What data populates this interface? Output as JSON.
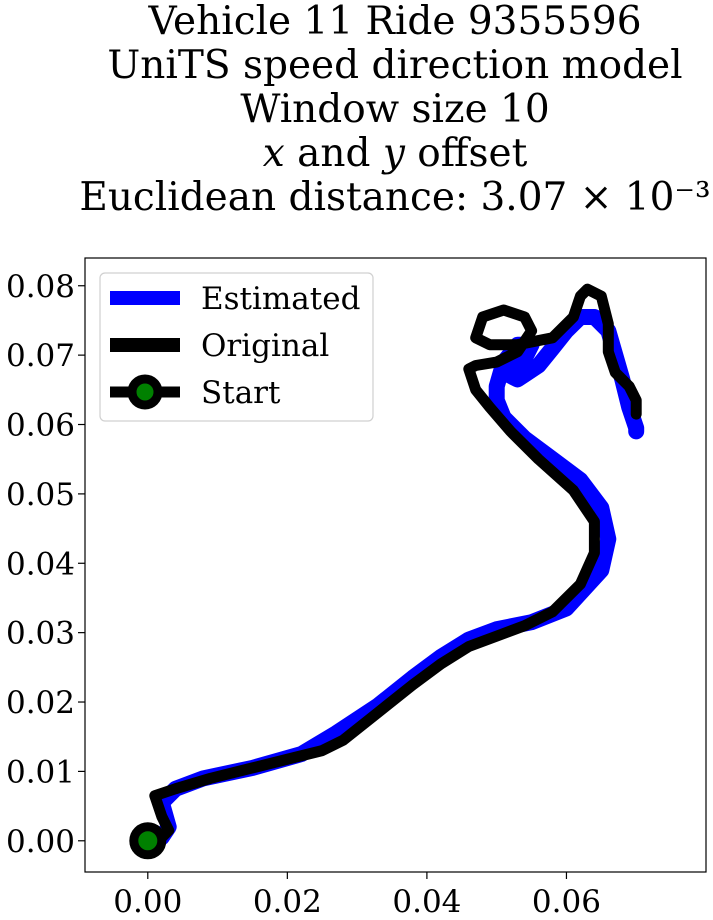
{
  "title_lines": [
    "Vehicle 11 Ride 9355596",
    "UniTS speed direction model",
    "Window size 10",
    "x and y offset",
    "Euclidean distance: 3.07 × 10⁻³"
  ],
  "chart_data": {
    "type": "line",
    "title": "Vehicle 11 Ride 9355596 / UniTS speed direction model / Window size 10 / x and y offset / Euclidean distance: 3.07 × 10⁻³",
    "xlabel": "",
    "ylabel": "",
    "xlim": [
      -0.009,
      0.08
    ],
    "ylim": [
      -0.0045,
      0.084
    ],
    "xticks": [
      0.0,
      0.02,
      0.04,
      0.06
    ],
    "xtick_labels": [
      "0.00",
      "0.02",
      "0.04",
      "0.06"
    ],
    "yticks": [
      0.0,
      0.01,
      0.02,
      0.03,
      0.04,
      0.05,
      0.06,
      0.07,
      0.08
    ],
    "ytick_labels": [
      "0.00",
      "0.01",
      "0.02",
      "0.03",
      "0.04",
      "0.05",
      "0.06",
      "0.07",
      "0.08"
    ],
    "grid": false,
    "legend_position": "top-left",
    "series": [
      {
        "name": "Estimated",
        "color": "#0000ff",
        "x": [
          0.0,
          0.002,
          0.003,
          0.002,
          0.004,
          0.008,
          0.015,
          0.022,
          0.027,
          0.033,
          0.038,
          0.042,
          0.046,
          0.05,
          0.055,
          0.06,
          0.065,
          0.066,
          0.065,
          0.062,
          0.058,
          0.054,
          0.051,
          0.05,
          0.05,
          0.051,
          0.053,
          0.055,
          0.054,
          0.052,
          0.051,
          0.053,
          0.056,
          0.058,
          0.06,
          0.062,
          0.064,
          0.066,
          0.067,
          0.068,
          0.069,
          0.07,
          0.07
        ],
        "y": [
          0.0,
          0.0005,
          0.002,
          0.0055,
          0.0075,
          0.009,
          0.0105,
          0.0125,
          0.0155,
          0.0195,
          0.0235,
          0.0265,
          0.029,
          0.0305,
          0.0315,
          0.0335,
          0.039,
          0.0435,
          0.048,
          0.052,
          0.055,
          0.058,
          0.061,
          0.0635,
          0.0655,
          0.069,
          0.0715,
          0.0715,
          0.0695,
          0.068,
          0.0675,
          0.0665,
          0.0685,
          0.071,
          0.0735,
          0.0755,
          0.0755,
          0.0735,
          0.07,
          0.0665,
          0.0625,
          0.0595,
          0.059
        ]
      },
      {
        "name": "Original",
        "color": "#000000",
        "x": [
          0.0,
          0.002,
          0.003,
          0.002,
          0.001,
          0.004,
          0.009,
          0.015,
          0.021,
          0.025,
          0.028,
          0.033,
          0.038,
          0.042,
          0.046,
          0.05,
          0.054,
          0.058,
          0.062,
          0.064,
          0.064,
          0.061,
          0.056,
          0.052,
          0.049,
          0.047,
          0.046,
          0.047,
          0.05,
          0.053,
          0.055,
          0.054,
          0.051,
          0.048,
          0.047,
          0.049,
          0.053,
          0.058,
          0.061,
          0.062,
          0.063,
          0.065,
          0.066,
          0.066,
          0.067,
          0.069,
          0.07,
          0.07,
          0.07
        ],
        "y": [
          0.0,
          0.0005,
          0.0015,
          0.0035,
          0.0065,
          0.0075,
          0.009,
          0.0105,
          0.012,
          0.013,
          0.0145,
          0.0185,
          0.0225,
          0.0255,
          0.028,
          0.0295,
          0.031,
          0.033,
          0.037,
          0.0415,
          0.046,
          0.0505,
          0.055,
          0.059,
          0.0625,
          0.065,
          0.068,
          0.0685,
          0.069,
          0.0705,
          0.0735,
          0.0755,
          0.0765,
          0.0755,
          0.0725,
          0.0715,
          0.0715,
          0.0725,
          0.0755,
          0.0785,
          0.0795,
          0.0785,
          0.0745,
          0.0705,
          0.0675,
          0.0655,
          0.0635,
          0.062,
          0.0615
        ]
      },
      {
        "name": "Start",
        "type": "scatter",
        "color": "#008000",
        "edgecolor": "#000000",
        "x": [
          0.0
        ],
        "y": [
          0.0
        ]
      }
    ]
  }
}
